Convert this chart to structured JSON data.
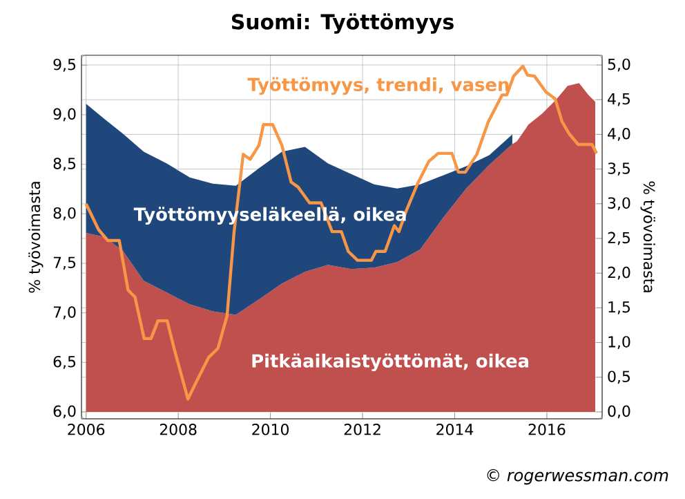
{
  "chart_data": {
    "type": "area",
    "title": "Suomi: Työttömyys",
    "x": [
      2006.0,
      2006.4,
      2006.8,
      2007.25,
      2007.75,
      2008.25,
      2008.75,
      2009.25,
      2009.75,
      2010.25,
      2010.75,
      2011.25,
      2011.75,
      2012.25,
      2012.75,
      2013.25,
      2013.75,
      2014.25,
      2014.75,
      2015.25,
      2015.35,
      2015.6,
      2015.9,
      2016.2,
      2016.45,
      2016.7,
      2016.9,
      2017.05
    ],
    "stacked": true,
    "series": [
      {
        "name": "Pitkäaikaistyöttömät, oikea",
        "axis": "y2",
        "color": "#c0504d",
        "values": [
          2.58,
          2.52,
          2.32,
          1.89,
          1.72,
          1.55,
          1.45,
          1.4,
          1.62,
          1.85,
          2.02,
          2.12,
          2.06,
          2.08,
          2.16,
          2.34,
          2.8,
          3.22,
          3.56,
          3.86,
          3.9,
          4.14,
          4.3,
          4.5,
          4.7,
          4.74,
          4.57,
          4.47
        ]
      },
      {
        "name": "Työttömyyseläkeellä, oikea",
        "axis": "y2",
        "color": "#1f477b",
        "values": [
          1.86,
          1.7,
          1.69,
          1.86,
          1.86,
          1.83,
          1.84,
          1.86,
          1.89,
          1.9,
          1.8,
          1.46,
          1.37,
          1.2,
          1.06,
          0.94,
          0.61,
          0.32,
          0.14,
          0.14,
          null,
          null,
          null,
          null,
          null,
          null,
          null,
          null
        ]
      },
      {
        "name": "Työttömyys, trendi, vasen",
        "type": "line",
        "axis": "y",
        "color": "#f79646",
        "x": [
          2006.0,
          2006.27,
          2006.47,
          2006.72,
          2006.91,
          2007.06,
          2007.26,
          2007.41,
          2007.56,
          2007.76,
          2007.91,
          2008.21,
          2008.41,
          2008.66,
          2008.86,
          2009.06,
          2009.21,
          2009.41,
          2009.56,
          2009.75,
          2009.85,
          2010.05,
          2010.25,
          2010.45,
          2010.6,
          2010.85,
          2011.1,
          2011.34,
          2011.54,
          2011.69,
          2011.89,
          2012.19,
          2012.29,
          2012.49,
          2012.69,
          2012.79,
          2012.94,
          2013.19,
          2013.44,
          2013.64,
          2013.94,
          2014.08,
          2014.23,
          2014.48,
          2014.73,
          2015.03,
          2015.13,
          2015.28,
          2015.48,
          2015.58,
          2015.73,
          2015.98,
          2016.18,
          2016.33,
          2016.48,
          2016.68,
          2016.98,
          2017.08
        ],
        "values": [
          8.1,
          7.84,
          7.73,
          7.73,
          7.23,
          7.16,
          6.74,
          6.74,
          6.92,
          6.92,
          6.64,
          6.13,
          6.32,
          6.55,
          6.64,
          6.97,
          7.81,
          8.6,
          8.55,
          8.69,
          8.9,
          8.9,
          8.69,
          8.32,
          8.27,
          8.11,
          8.11,
          7.82,
          7.82,
          7.62,
          7.53,
          7.53,
          7.62,
          7.62,
          7.88,
          7.82,
          8.02,
          8.3,
          8.53,
          8.61,
          8.61,
          8.42,
          8.42,
          8.6,
          8.93,
          9.2,
          9.2,
          9.39,
          9.49,
          9.4,
          9.39,
          9.23,
          9.16,
          8.93,
          8.81,
          8.7,
          8.7,
          8.61
        ]
      }
    ],
    "xlim": [
      2005.9,
      2017.2
    ],
    "xticks": [
      2006,
      2008,
      2010,
      2012,
      2014,
      2016
    ],
    "ylim": [
      5.93,
      9.6
    ],
    "yticks": [
      {
        "value": 6.0,
        "label": "6,0"
      },
      {
        "value": 6.5,
        "label": "6,5"
      },
      {
        "value": 7.0,
        "label": "7,0"
      },
      {
        "value": 7.5,
        "label": "7,5"
      },
      {
        "value": 8.0,
        "label": "8,0"
      },
      {
        "value": 8.5,
        "label": "8,5"
      },
      {
        "value": 9.0,
        "label": "9,0"
      },
      {
        "value": 9.5,
        "label": "9,5"
      }
    ],
    "y2lim": [
      -0.1,
      5.14
    ],
    "y2ticks": [
      {
        "value": 0.0,
        "label": "0,0"
      },
      {
        "value": 0.5,
        "label": "0,5"
      },
      {
        "value": 1.0,
        "label": "1,0"
      },
      {
        "value": 1.5,
        "label": "1,5"
      },
      {
        "value": 2.0,
        "label": "2,0"
      },
      {
        "value": 2.5,
        "label": "2,5"
      },
      {
        "value": 3.0,
        "label": "3,0"
      },
      {
        "value": 3.5,
        "label": "3,5"
      },
      {
        "value": 4.0,
        "label": "4,0"
      },
      {
        "value": 4.5,
        "label": "4,5"
      },
      {
        "value": 5.0,
        "label": "5,0"
      }
    ],
    "ylabel": "% työvoimasta",
    "y2label": "% työvoimasta",
    "grid": true,
    "annotations": [
      "*© rogerwessman.com*"
    ]
  }
}
